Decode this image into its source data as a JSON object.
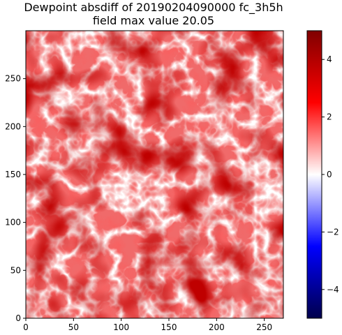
{
  "chart_data": {
    "type": "heatmap",
    "title": "Dewpoint absdiff of 20190204090000 fc_3h5h",
    "subtitle": "field max value 20.05",
    "xlabel": "",
    "ylabel": "",
    "xlim": [
      0,
      270
    ],
    "ylim": [
      0,
      300
    ],
    "x_ticks": [
      0,
      50,
      100,
      150,
      200,
      250
    ],
    "y_ticks": [
      0,
      50,
      100,
      150,
      200,
      250
    ],
    "colorbar": {
      "colormap": "seismic",
      "range": [
        -5,
        5
      ],
      "ticks": [
        -4,
        -2,
        0,
        2,
        4
      ],
      "tick_labels": [
        "−4",
        "−2",
        "0",
        "2",
        "4"
      ]
    },
    "field_max": 20.05,
    "colors": {
      "low": "#00004c",
      "mid": "#ffffff",
      "high": "#800000"
    }
  }
}
